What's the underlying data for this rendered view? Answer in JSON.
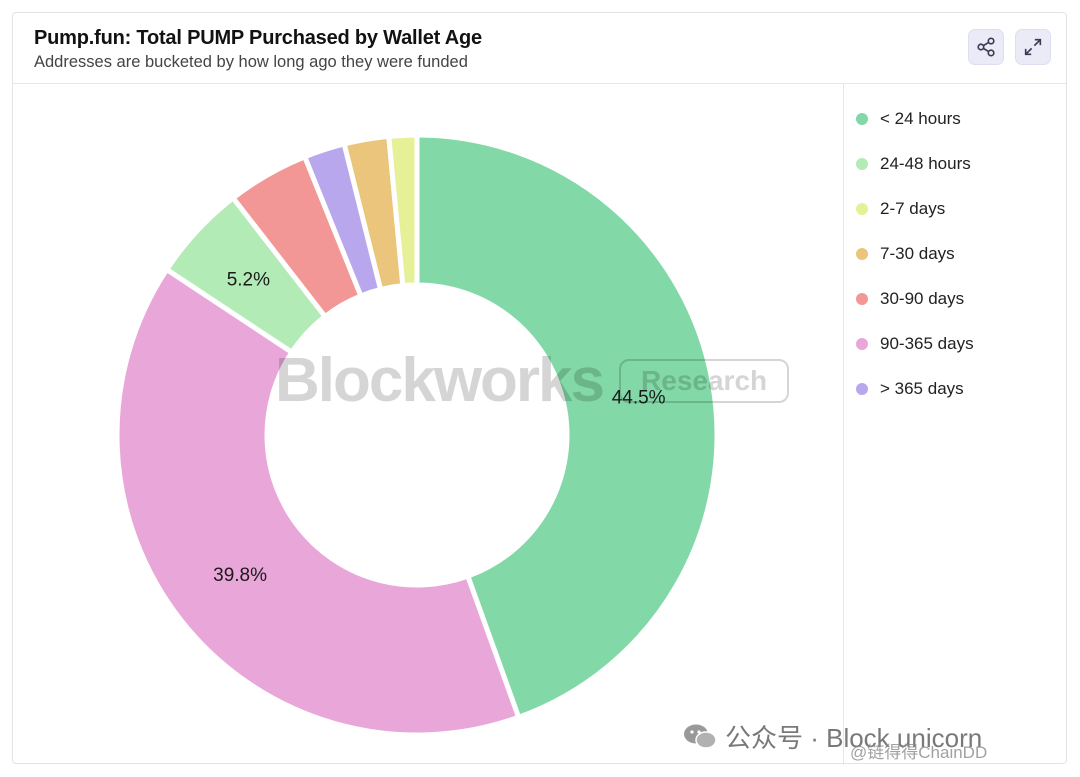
{
  "header": {
    "title": "Pump.fun: Total PUMP Purchased by Wallet Age",
    "subtitle": "Addresses are bucketed by how long ago they were funded",
    "share_icon": "share-icon",
    "expand_icon": "expand-icon"
  },
  "watermark": {
    "brand": "Blockworks",
    "tag": "Research"
  },
  "footer": {
    "wechat_text": "公众号 · Block unicorn",
    "handle": "@链得得ChainDD"
  },
  "chart_data": {
    "type": "pie",
    "donut": true,
    "title": "Pump.fun: Total PUMP Purchased by Wallet Age",
    "subtitle": "Addresses are bucketed by how long ago they were funded",
    "legend_position": "right",
    "categories": [
      "< 24 hours",
      "24-48 hours",
      "2-7 days",
      "7-30 days",
      "30-90 days",
      "90-365 days",
      "> 365 days"
    ],
    "values": [
      44.5,
      5.2,
      1.5,
      2.4,
      4.4,
      39.8,
      2.2
    ],
    "data_labels": [
      "44.5%",
      "5.2%",
      "",
      "",
      "",
      "39.8%",
      ""
    ],
    "colors": [
      "#82d8a6",
      "#b2ebb6",
      "#e6f097",
      "#ebc57c",
      "#f39796",
      "#e9a6d8",
      "#b9a7ee"
    ],
    "draw_order": [
      0,
      5,
      1,
      4,
      6,
      3,
      2
    ]
  }
}
